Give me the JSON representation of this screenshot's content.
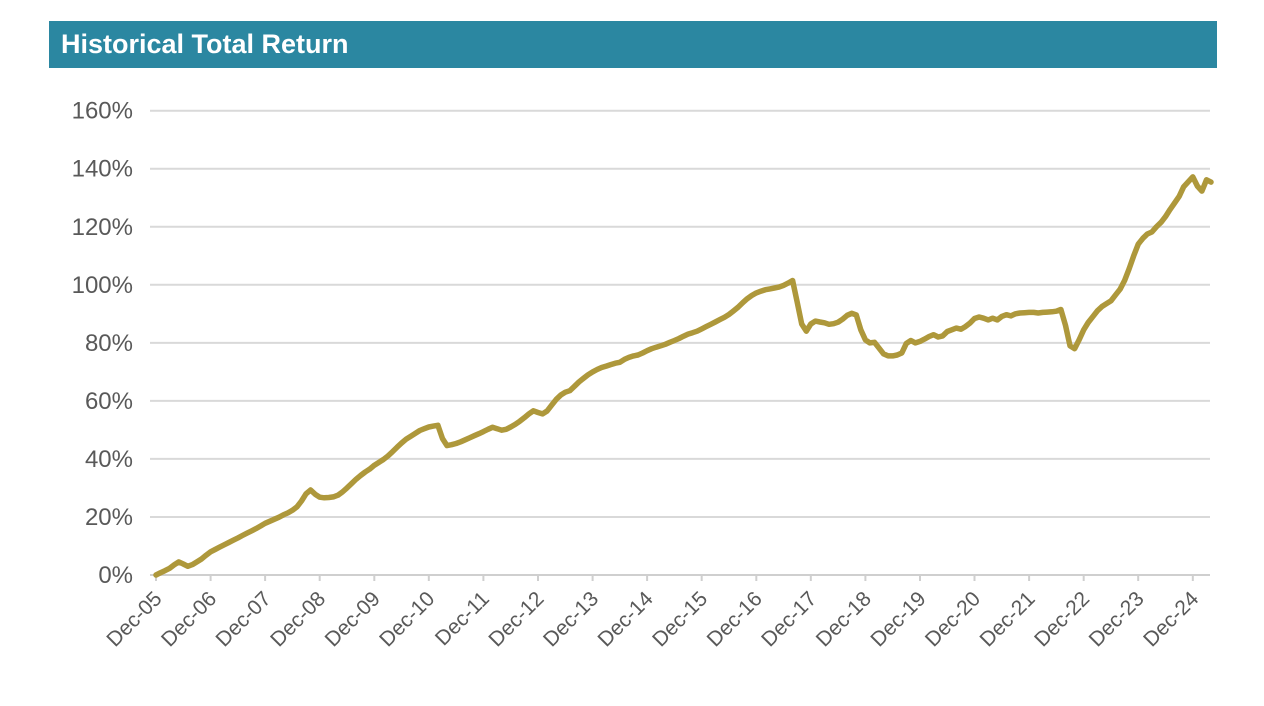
{
  "header": {
    "title": "Historical Total Return"
  },
  "colors": {
    "header_background": "#2B87A1",
    "header_text": "#FFFFFF",
    "series_line": "#AE983B",
    "gridline": "#D9D9D9",
    "axis_line": "#CFCFCF",
    "tick_label": "#595959"
  },
  "chart_data": {
    "type": "line",
    "title": "Historical Total Return",
    "xlabel": "",
    "ylabel": "",
    "frequency": "monthly",
    "x_start": "Dec-05",
    "x_end": "Apr-25",
    "x_tick_labels": [
      "Dec-05",
      "Dec-06",
      "Dec-07",
      "Dec-08",
      "Dec-09",
      "Dec-10",
      "Dec-11",
      "Dec-12",
      "Dec-13",
      "Dec-14",
      "Dec-15",
      "Dec-16",
      "Dec-17",
      "Dec-18",
      "Dec-19",
      "Dec-20",
      "Dec-21",
      "Dec-22",
      "Dec-23",
      "Dec-24"
    ],
    "x_tick_interval_months": 12,
    "y_tick_labels": [
      "0%",
      "20%",
      "40%",
      "60%",
      "80%",
      "100%",
      "120%",
      "140%",
      "160%"
    ],
    "y_ticks": [
      0,
      20,
      40,
      60,
      80,
      100,
      120,
      140,
      160
    ],
    "ylim": [
      0,
      160
    ],
    "grid": "horizontal",
    "legend_position": "none",
    "series": [
      {
        "name": "Historical Total Return (%)",
        "color": "#AE983B",
        "values": [
          0.0,
          0.8,
          1.5,
          2.3,
          3.5,
          4.5,
          3.8,
          3.0,
          3.6,
          4.5,
          5.5,
          6.8,
          8.0,
          8.8,
          9.6,
          10.4,
          11.2,
          12.0,
          12.8,
          13.6,
          14.4,
          15.2,
          16.0,
          16.9,
          17.8,
          18.5,
          19.2,
          19.9,
          20.7,
          21.4,
          22.3,
          23.5,
          25.5,
          28.0,
          29.3,
          27.8,
          26.8,
          26.6,
          26.7,
          26.9,
          27.5,
          28.6,
          30.0,
          31.5,
          33.0,
          34.3,
          35.5,
          36.5,
          37.8,
          38.8,
          39.8,
          41.0,
          42.5,
          44.0,
          45.5,
          46.8,
          47.8,
          48.8,
          49.8,
          50.4,
          51.0,
          51.3,
          51.6,
          47.0,
          44.6,
          44.9,
          45.3,
          45.9,
          46.6,
          47.3,
          48.0,
          48.7,
          49.4,
          50.2,
          50.9,
          50.4,
          49.9,
          50.2,
          51.0,
          51.9,
          53.0,
          54.2,
          55.5,
          56.6,
          56.0,
          55.5,
          56.5,
          58.5,
          60.5,
          62.0,
          63.0,
          63.5,
          65.0,
          66.5,
          67.8,
          69.0,
          70.0,
          70.8,
          71.5,
          72.0,
          72.5,
          73.0,
          73.3,
          74.3,
          75.0,
          75.5,
          75.8,
          76.5,
          77.3,
          78.0,
          78.5,
          79.0,
          79.5,
          80.2,
          80.8,
          81.5,
          82.3,
          83.0,
          83.5,
          84.0,
          84.8,
          85.6,
          86.4,
          87.2,
          88.0,
          88.8,
          89.8,
          91.0,
          92.3,
          93.8,
          95.2,
          96.3,
          97.2,
          97.8,
          98.3,
          98.6,
          98.9,
          99.2,
          99.8,
          100.6,
          101.5,
          94.0,
          86.5,
          84.0,
          86.5,
          87.5,
          87.2,
          86.9,
          86.4,
          86.6,
          87.1,
          88.2,
          89.5,
          90.2,
          89.6,
          84.5,
          81.0,
          80.0,
          80.2,
          78.2,
          76.2,
          75.5,
          75.5,
          75.8,
          76.5,
          79.8,
          80.8,
          80.0,
          80.5,
          81.3,
          82.2,
          82.8,
          82.0,
          82.4,
          83.9,
          84.5,
          85.1,
          84.7,
          85.6,
          86.8,
          88.4,
          88.9,
          88.5,
          87.9,
          88.5,
          87.9,
          89.1,
          89.7,
          89.3,
          90.0,
          90.3,
          90.4,
          90.5,
          90.5,
          90.3,
          90.5,
          90.6,
          90.7,
          90.9,
          91.5,
          86.0,
          79.0,
          78.0,
          81.0,
          84.5,
          87.0,
          89.0,
          91.0,
          92.5,
          93.5,
          94.5,
          96.5,
          98.5,
          101.5,
          105.5,
          110.0,
          114.0,
          116.0,
          117.5,
          118.2,
          120.0,
          121.5,
          123.5,
          126.0,
          128.2,
          130.5,
          133.8,
          135.5,
          137.2,
          134.0,
          132.3,
          136.2,
          135.4
        ]
      }
    ]
  }
}
